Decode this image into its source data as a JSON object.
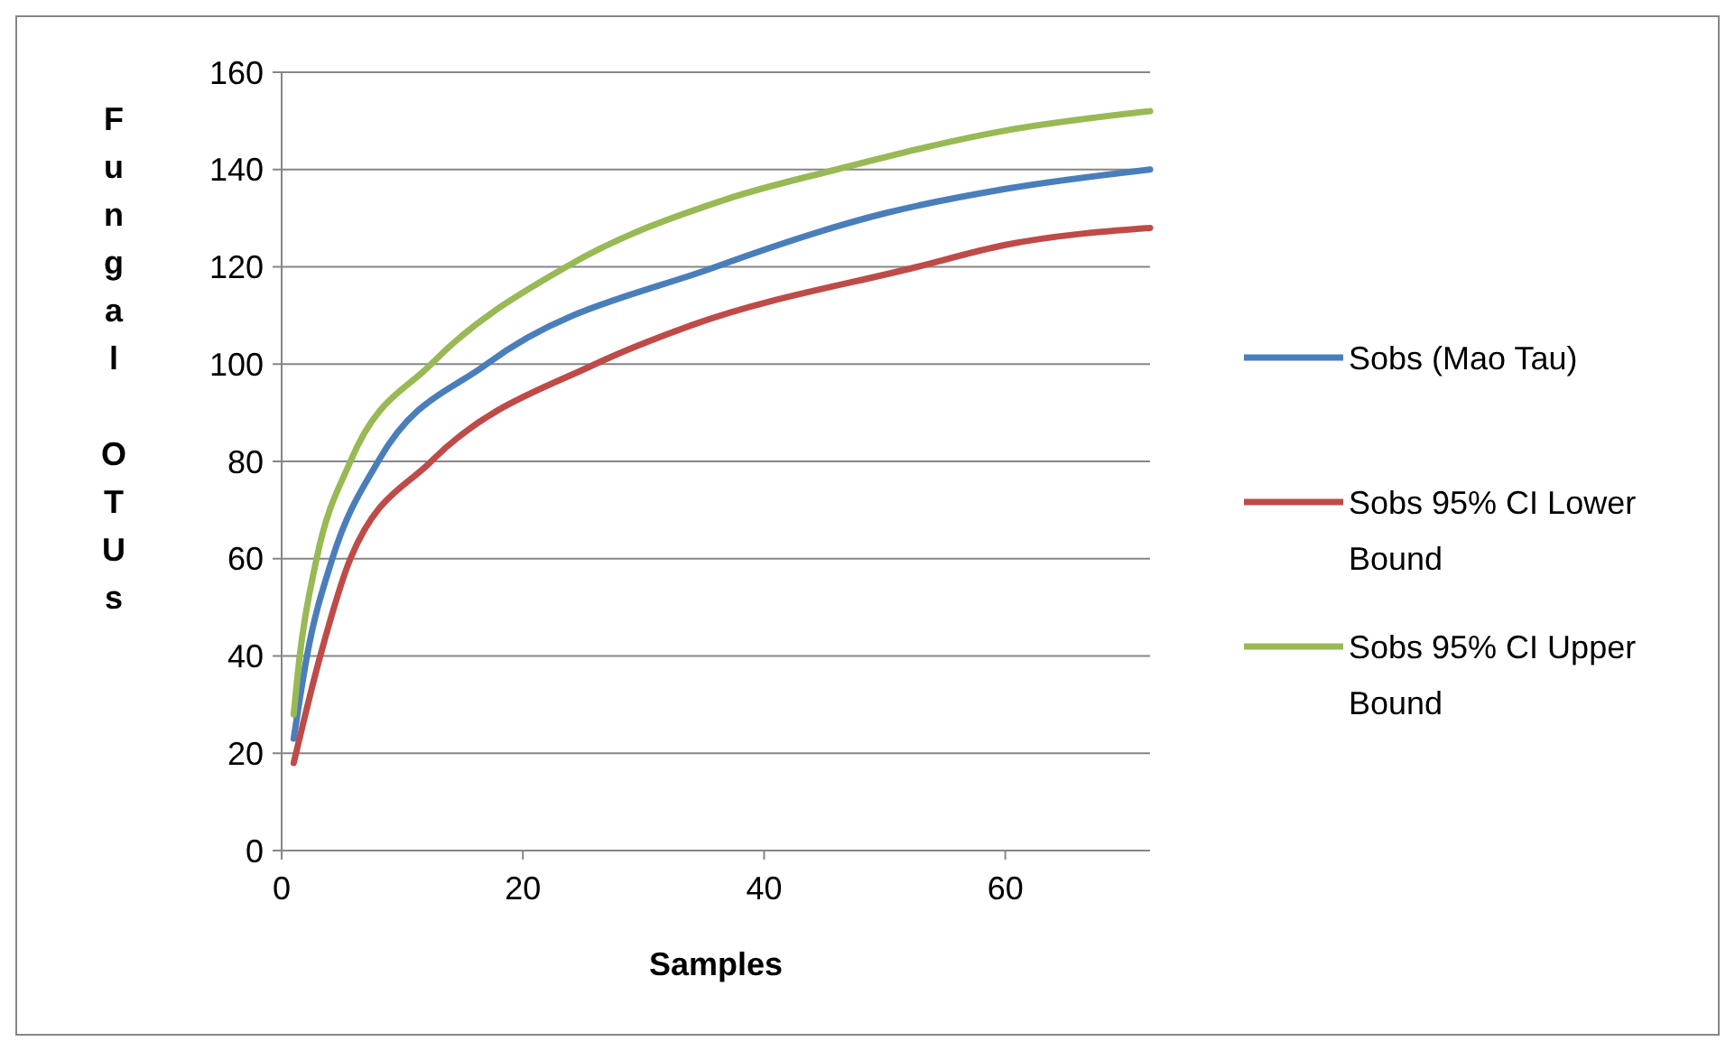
{
  "chart_data": {
    "type": "line",
    "xlabel": "Samples",
    "ylabel": "Fungal OTUs",
    "xlim": [
      0,
      72
    ],
    "xticks": [
      0,
      20,
      40,
      60
    ],
    "ylim": [
      0,
      160
    ],
    "yticks": [
      0,
      20,
      40,
      60,
      80,
      100,
      120,
      140,
      160
    ],
    "grid": "y",
    "legend": "right",
    "marker": "none",
    "line_style": "solid",
    "series": [
      {
        "name": "Sobs (Mao Tau)",
        "color": "#4a7ebb",
        "x": [
          1,
          2.1,
          4.2,
          8,
          17,
          36,
          50,
          60,
          72
        ],
        "values": [
          23,
          40,
          60,
          80,
          100,
          120,
          131,
          136,
          140
        ]
      },
      {
        "name": "Sobs 95% CI Lower Bound",
        "color": "#be4b48",
        "x": [
          1,
          3.2,
          5.7,
          12.4,
          26,
          34,
          52.7,
          60,
          72
        ],
        "values": [
          18,
          40,
          60,
          80,
          100,
          108,
          120,
          124.5,
          128
        ]
      },
      {
        "name": "Sobs 95% CI Upper Bound",
        "color": "#98b954",
        "x": [
          1,
          1.5,
          2.9,
          5.7,
          12.4,
          23.6,
          37,
          46,
          60,
          72
        ],
        "values": [
          28,
          40,
          60,
          80,
          100,
          120,
          134,
          140,
          148,
          152
        ]
      }
    ]
  }
}
